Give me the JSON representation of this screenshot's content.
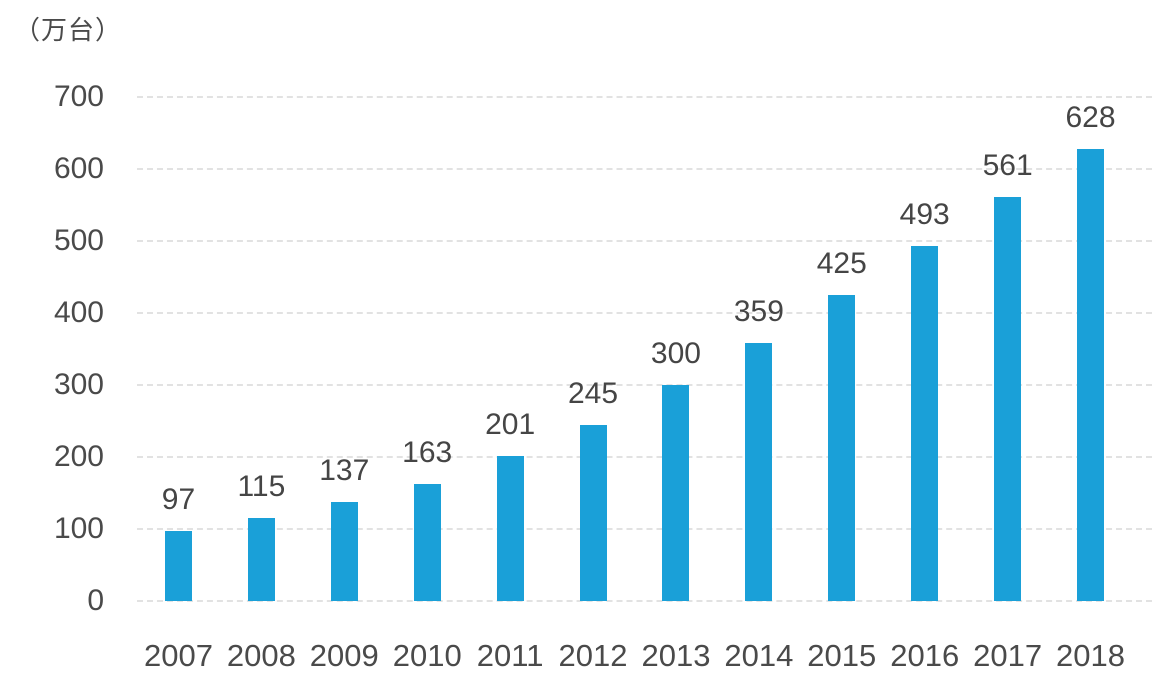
{
  "chart_data": {
    "type": "bar",
    "title": "",
    "xlabel": "",
    "ylabel": "（万台）",
    "unit_label": "（万台）",
    "categories": [
      "2007",
      "2008",
      "2009",
      "2010",
      "2011",
      "2012",
      "2013",
      "2014",
      "2015",
      "2016",
      "2017",
      "2018"
    ],
    "values": [
      97,
      115,
      137,
      163,
      201,
      245,
      300,
      359,
      425,
      493,
      561,
      628
    ],
    "y_ticks": [
      0,
      100,
      200,
      300,
      400,
      500,
      600,
      700
    ],
    "ylim": [
      0,
      700
    ],
    "grid": "horizontal-dashed",
    "legend_position": "none",
    "value_labels": "above-bars",
    "colors": {
      "bar": "#1aa0d8",
      "text": "#4a4a4a",
      "gridline": "#e2e2e2",
      "background": "#ffffff"
    }
  }
}
